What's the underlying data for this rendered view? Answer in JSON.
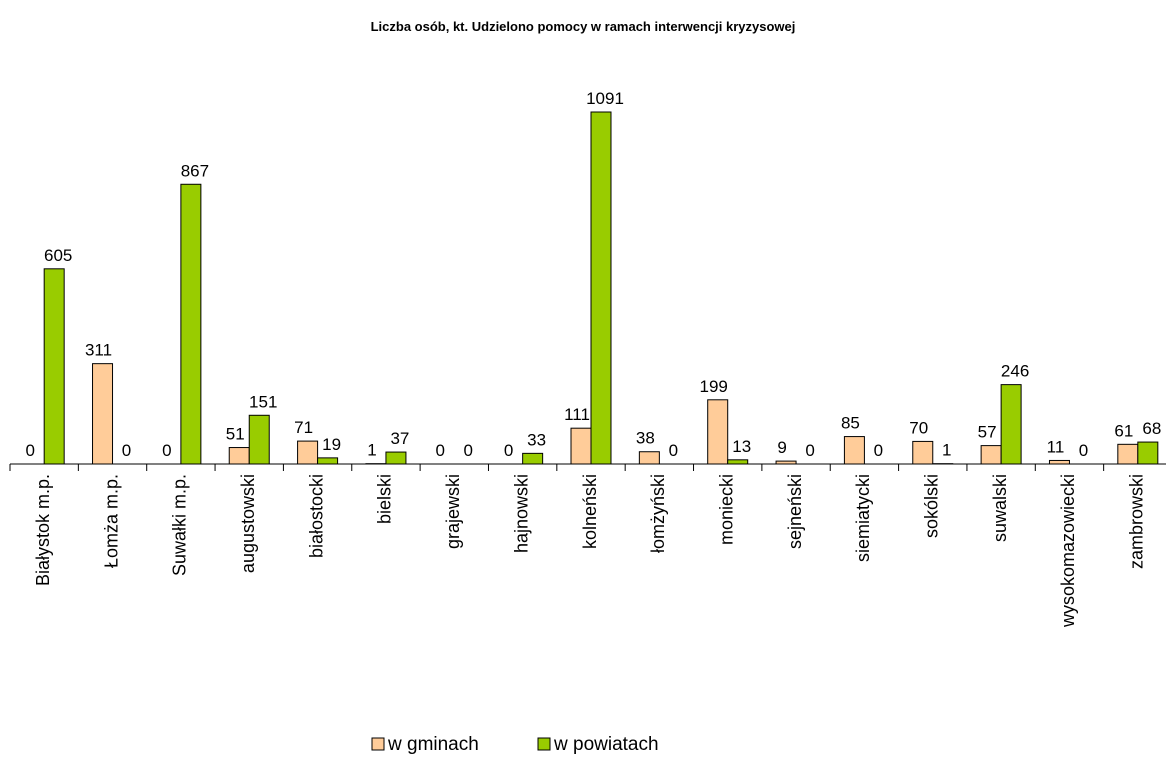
{
  "chart_data": {
    "type": "bar",
    "title": "Liczba osób, kt. Udzielono pomocy w ramach interwencji kryzysowej",
    "categories": [
      "Białystok m.p.",
      "Łomża m.p.",
      "Suwałki m.p.",
      "augustowski",
      "białostocki",
      "bielski",
      "grajewski",
      "hajnowski",
      "kolneński",
      "łomżyński",
      "moniecki",
      "sejneński",
      "siemiatycki",
      "sokólski",
      "suwalski",
      "wysokomazowiecki",
      "zambrowski"
    ],
    "series": [
      {
        "name": "w gminach",
        "color": "#FFCC99",
        "values": [
          0,
          311,
          0,
          51,
          71,
          1,
          0,
          0,
          111,
          38,
          199,
          9,
          85,
          70,
          57,
          11,
          61
        ]
      },
      {
        "name": "w powiatach",
        "color": "#99CC00",
        "values": [
          605,
          0,
          867,
          151,
          19,
          37,
          0,
          33,
          1091,
          0,
          13,
          0,
          0,
          1,
          246,
          0,
          68
        ]
      }
    ]
  }
}
